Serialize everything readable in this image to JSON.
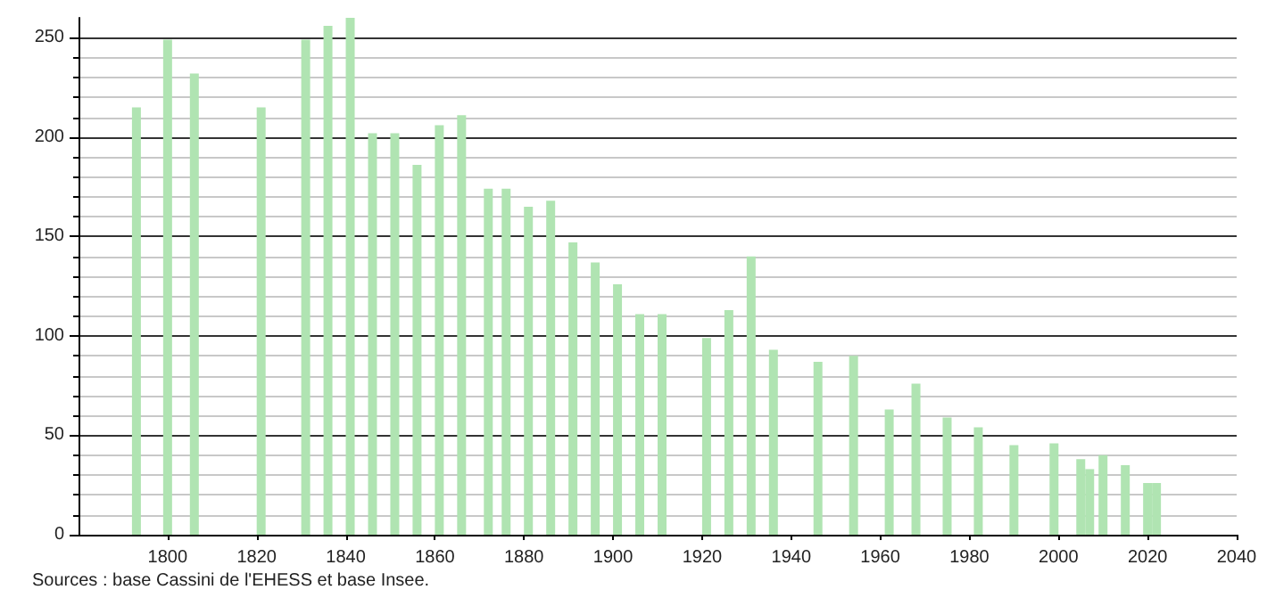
{
  "chart_data": {
    "type": "bar",
    "x": [
      1793,
      1800,
      1806,
      1821,
      1831,
      1836,
      1841,
      1846,
      1851,
      1856,
      1861,
      1866,
      1872,
      1876,
      1881,
      1886,
      1891,
      1896,
      1901,
      1906,
      1911,
      1921,
      1926,
      1931,
      1936,
      1946,
      1954,
      1962,
      1968,
      1975,
      1982,
      1990,
      1999,
      2005,
      2007,
      2010,
      2015,
      2020,
      2022
    ],
    "values": [
      215,
      249,
      232,
      215,
      249,
      256,
      260,
      202,
      202,
      186,
      206,
      211,
      174,
      174,
      165,
      168,
      147,
      137,
      126,
      111,
      111,
      99,
      113,
      140,
      93,
      87,
      90,
      63,
      76,
      59,
      54,
      45,
      46,
      38,
      33,
      40,
      35,
      26,
      26
    ],
    "color": "#b0e4b2",
    "xlim": [
      1780,
      2040
    ],
    "xticks": [
      1800,
      1820,
      1840,
      1860,
      1880,
      1900,
      1920,
      1940,
      1960,
      1980,
      2000,
      2020,
      2040
    ],
    "ylim": [
      0,
      260
    ],
    "yticks": [
      0,
      50,
      100,
      150,
      200,
      250
    ],
    "grid": "y",
    "annotations": [
      "Sources : base Cassini de l'EHESS et base Insee."
    ]
  }
}
